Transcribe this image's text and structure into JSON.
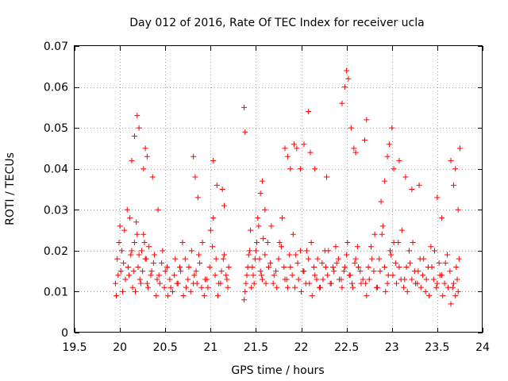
{
  "chart_data": {
    "type": "scatter",
    "title": "Day 012 of 2016, Rate Of TEC Index for receiver ucla",
    "xlabel": "GPS time / hours",
    "ylabel": "ROTI / TECUs",
    "xlim": [
      19.5,
      24
    ],
    "ylim": [
      0,
      0.07
    ],
    "x_ticks": [
      "19.5",
      "20",
      "20.5",
      "21",
      "21.5",
      "22",
      "22.5",
      "23",
      "23.5",
      "24"
    ],
    "y_ticks": [
      "0",
      "0.01",
      "0.02",
      "0.03",
      "0.04",
      "0.05",
      "0.06",
      "0.07"
    ],
    "grid": true,
    "marker": "+",
    "color": "#ff0000",
    "series": [
      {
        "name": "ROTI",
        "x": [
          19.95,
          19.97,
          19.99,
          20.01,
          20.03,
          20.05,
          20.08,
          20.1,
          20.12,
          20.14,
          20.16,
          20.18,
          20.2,
          20.22,
          20.24,
          20.26,
          20.28,
          20.3,
          20.32,
          20.35,
          20.38,
          20.4,
          20.43,
          20.46,
          20.49,
          20.52,
          20.55,
          20.58,
          20.61,
          20.64,
          20.67,
          20.7,
          20.73,
          20.76,
          20.79,
          20.82,
          20.85,
          20.88,
          20.91,
          20.94,
          20.97,
          21.0,
          21.03,
          21.06,
          21.09,
          21.12,
          21.15,
          21.18,
          21.2,
          19.96,
          19.98,
          20.0,
          20.02,
          20.04,
          20.06,
          20.09,
          20.11,
          20.13,
          20.15,
          20.17,
          20.19,
          20.21,
          20.23,
          20.25,
          20.27,
          20.29,
          20.31,
          20.34,
          20.37,
          20.41,
          20.44,
          20.47,
          20.5,
          20.53,
          20.56,
          20.6,
          20.63,
          20.66,
          20.69,
          20.72,
          20.75,
          20.78,
          20.81,
          20.84,
          20.87,
          20.9,
          20.93,
          20.96,
          20.99,
          21.02,
          21.05,
          21.08,
          21.11,
          21.14,
          21.17,
          21.19,
          20.13,
          20.16,
          20.19,
          20.21,
          20.26,
          20.28,
          20.3,
          20.36,
          20.42,
          20.81,
          20.83,
          20.86,
          21.03,
          21.07,
          21.13,
          21.15,
          21.37,
          21.39,
          21.41,
          21.43,
          21.45,
          21.47,
          21.49,
          21.51,
          21.53,
          21.55,
          21.57,
          21.6,
          21.63,
          21.66,
          21.69,
          21.72,
          21.75,
          21.78,
          21.81,
          21.84,
          21.87,
          21.9,
          21.93,
          21.96,
          21.99,
          22.02,
          22.05,
          22.08,
          22.11,
          22.14,
          22.17,
          22.2,
          22.23,
          22.26,
          22.29,
          22.32,
          22.35,
          22.38,
          22.41,
          22.44,
          22.47,
          22.5,
          22.53,
          22.56,
          22.59,
          22.62,
          22.65,
          22.68,
          21.38,
          21.4,
          21.42,
          21.44,
          21.46,
          21.48,
          21.5,
          21.52,
          21.54,
          21.56,
          21.58,
          21.61,
          21.64,
          21.67,
          21.7,
          21.73,
          21.76,
          21.79,
          21.82,
          21.85,
          21.88,
          21.91,
          21.94,
          21.97,
          22.0,
          22.03,
          22.06,
          22.09,
          22.12,
          22.15,
          22.18,
          22.21,
          22.24,
          22.27,
          22.3,
          22.33,
          22.36,
          22.39,
          22.42,
          22.45,
          22.48,
          22.51,
          22.54,
          22.57,
          22.6,
          22.63,
          22.66,
          21.37,
          21.38,
          21.55,
          21.57,
          21.6,
          21.82,
          21.85,
          21.88,
          21.92,
          21.95,
          21.99,
          22.03,
          22.08,
          22.1,
          22.15,
          22.28,
          22.45,
          22.48,
          22.5,
          22.52,
          22.55,
          22.58,
          22.6,
          22.7,
          22.72,
          22.71,
          22.74,
          22.77,
          22.8,
          22.83,
          22.86,
          22.89,
          22.92,
          22.95,
          22.98,
          23.01,
          23.04,
          23.07,
          23.1,
          23.13,
          23.16,
          23.19,
          23.22,
          23.25,
          23.28,
          23.31,
          23.34,
          23.37,
          23.4,
          23.43,
          23.46,
          23.49,
          23.52,
          23.55,
          23.58,
          23.61,
          23.64,
          23.67,
          23.7,
          23.72,
          23.74,
          22.72,
          22.75,
          22.78,
          22.81,
          22.84,
          22.87,
          22.9,
          22.93,
          22.96,
          22.99,
          23.02,
          23.05,
          23.08,
          23.11,
          23.14,
          23.17,
          23.2,
          23.23,
          23.26,
          23.29,
          23.32,
          23.35,
          23.38,
          23.41,
          23.44,
          23.47,
          23.5,
          23.53,
          23.56,
          23.59,
          23.62,
          23.65,
          23.68,
          23.71,
          23.73,
          22.88,
          22.92,
          22.95,
          22.97,
          23.0,
          23.02,
          23.08,
          23.15,
          23.22,
          23.3,
          23.5,
          23.55,
          23.65,
          23.68,
          23.7,
          23.73,
          23.75
        ],
        "y": [
          0.012,
          0.018,
          0.022,
          0.015,
          0.01,
          0.025,
          0.03,
          0.014,
          0.019,
          0.011,
          0.022,
          0.027,
          0.016,
          0.013,
          0.02,
          0.024,
          0.018,
          0.012,
          0.021,
          0.015,
          0.019,
          0.009,
          0.014,
          0.017,
          0.011,
          0.016,
          0.013,
          0.01,
          0.018,
          0.012,
          0.015,
          0.009,
          0.011,
          0.016,
          0.02,
          0.014,
          0.012,
          0.017,
          0.022,
          0.013,
          0.011,
          0.025,
          0.028,
          0.018,
          0.012,
          0.015,
          0.019,
          0.013,
          0.016,
          0.009,
          0.014,
          0.026,
          0.02,
          0.017,
          0.013,
          0.016,
          0.028,
          0.02,
          0.015,
          0.01,
          0.024,
          0.019,
          0.012,
          0.015,
          0.022,
          0.018,
          0.011,
          0.014,
          0.017,
          0.013,
          0.012,
          0.02,
          0.015,
          0.009,
          0.011,
          0.014,
          0.012,
          0.016,
          0.022,
          0.018,
          0.013,
          0.01,
          0.012,
          0.015,
          0.019,
          0.011,
          0.009,
          0.013,
          0.016,
          0.021,
          0.014,
          0.009,
          0.012,
          0.018,
          0.014,
          0.011,
          0.042,
          0.048,
          0.053,
          0.05,
          0.04,
          0.045,
          0.043,
          0.038,
          0.03,
          0.043,
          0.038,
          0.033,
          0.042,
          0.036,
          0.035,
          0.031,
          0.008,
          0.012,
          0.016,
          0.02,
          0.011,
          0.014,
          0.018,
          0.022,
          0.026,
          0.015,
          0.013,
          0.019,
          0.022,
          0.017,
          0.012,
          0.015,
          0.018,
          0.021,
          0.016,
          0.013,
          0.019,
          0.014,
          0.011,
          0.017,
          0.02,
          0.015,
          0.012,
          0.018,
          0.022,
          0.016,
          0.013,
          0.011,
          0.017,
          0.02,
          0.014,
          0.012,
          0.016,
          0.021,
          0.018,
          0.013,
          0.015,
          0.019,
          0.014,
          0.012,
          0.017,
          0.021,
          0.015,
          0.013,
          0.01,
          0.014,
          0.019,
          0.025,
          0.016,
          0.012,
          0.02,
          0.028,
          0.018,
          0.014,
          0.023,
          0.012,
          0.016,
          0.026,
          0.014,
          0.011,
          0.022,
          0.028,
          0.013,
          0.011,
          0.016,
          0.024,
          0.019,
          0.013,
          0.01,
          0.015,
          0.02,
          0.012,
          0.009,
          0.014,
          0.018,
          0.011,
          0.013,
          0.016,
          0.02,
          0.012,
          0.015,
          0.017,
          0.013,
          0.011,
          0.016,
          0.022,
          0.014,
          0.011,
          0.018,
          0.016,
          0.012,
          0.055,
          0.049,
          0.034,
          0.037,
          0.03,
          0.045,
          0.043,
          0.04,
          0.046,
          0.045,
          0.04,
          0.046,
          0.054,
          0.044,
          0.04,
          0.038,
          0.056,
          0.06,
          0.064,
          0.062,
          0.05,
          0.045,
          0.044,
          0.047,
          0.052,
          0.012,
          0.016,
          0.021,
          0.015,
          0.011,
          0.018,
          0.024,
          0.016,
          0.012,
          0.02,
          0.014,
          0.017,
          0.022,
          0.013,
          0.011,
          0.016,
          0.02,
          0.013,
          0.015,
          0.012,
          0.018,
          0.014,
          0.01,
          0.016,
          0.021,
          0.013,
          0.011,
          0.017,
          0.014,
          0.012,
          0.019,
          0.015,
          0.011,
          0.009,
          0.013,
          0.018,
          0.009,
          0.013,
          0.018,
          0.024,
          0.011,
          0.015,
          0.026,
          0.01,
          0.014,
          0.019,
          0.022,
          0.012,
          0.016,
          0.025,
          0.013,
          0.01,
          0.017,
          0.022,
          0.012,
          0.015,
          0.011,
          0.018,
          0.013,
          0.009,
          0.016,
          0.02,
          0.012,
          0.014,
          0.009,
          0.017,
          0.011,
          0.007,
          0.012,
          0.016,
          0.01,
          0.032,
          0.037,
          0.043,
          0.046,
          0.05,
          0.04,
          0.042,
          0.038,
          0.035,
          0.036,
          0.033,
          0.028,
          0.042,
          0.036,
          0.04,
          0.03,
          0.045
        ]
      }
    ]
  }
}
